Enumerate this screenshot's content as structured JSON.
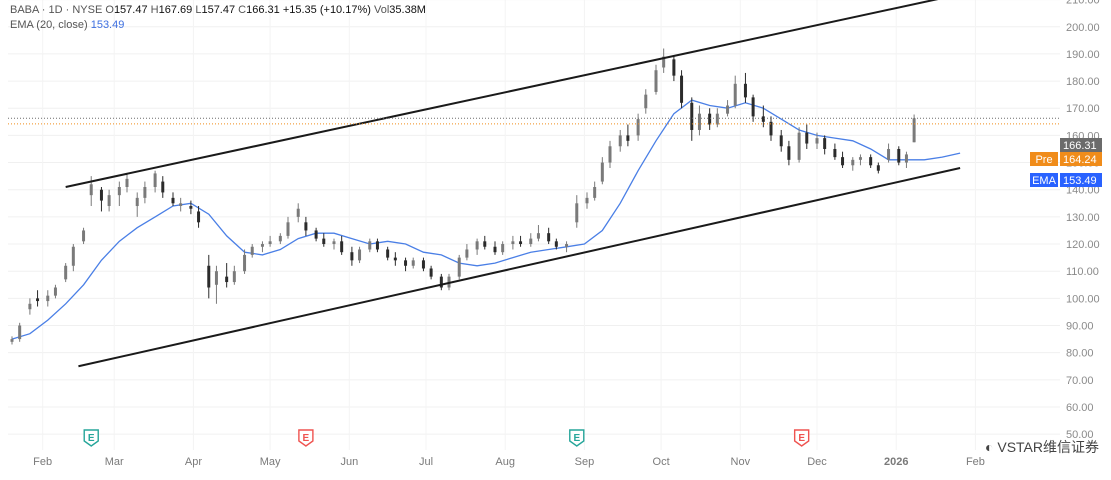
{
  "legend": {
    "symbol_line": "BABA · 1D · NYSE",
    "o_label": "O",
    "o_value": "157.47",
    "h_label": "H",
    "h_value": "167.69",
    "l_label": "L",
    "l_value": "157.47",
    "c_label": "C",
    "c_value": "166.31",
    "change": "+15.35 (+10.17%)",
    "vol_label": "Vol",
    "vol_value": "35.38M",
    "ema_label": "EMA (20, close)",
    "ema_value": "153.49"
  },
  "price_tags": {
    "last": {
      "value": "166.31",
      "color": "#6b6b6b"
    },
    "pre": {
      "label": "Pre",
      "value": "164.24",
      "color": "#f08c1a"
    },
    "ema": {
      "label": "EMA",
      "value": "153.49",
      "color": "#2962ff"
    }
  },
  "earnings_marker": "E",
  "watermark": "VSTAR维信证券",
  "chart_data": {
    "type": "candlestick",
    "y_ticks": [
      "220.00",
      "210.00",
      "200.00",
      "190.00",
      "180.00",
      "170.00",
      "160.00",
      "150.00",
      "140.00",
      "130.00",
      "120.00",
      "110.00",
      "100.00",
      "90.00",
      "80.00",
      "70.00",
      "60.00",
      "50.00"
    ],
    "ylim": [
      49,
      224
    ],
    "x_ticks": [
      "Feb",
      "Mar",
      "Apr",
      "May",
      "Jun",
      "Jul",
      "Aug",
      "Sep",
      "Oct",
      "Nov",
      "Dec",
      "2026",
      "Feb"
    ],
    "x_tick_dates": [
      "2025-02-01",
      "2025-03-01",
      "2025-04-01",
      "2025-05-01",
      "2025-06-01",
      "2025-07-01",
      "2025-08-01",
      "2025-09-01",
      "2025-10-01",
      "2025-11-01",
      "2025-12-01",
      "2026-01-01",
      "2026-02-01"
    ],
    "xlim": [
      "2025-01-20",
      "2026-02-20"
    ],
    "earnings_dates": [
      "2025-02-20",
      "2025-05-15",
      "2025-08-29",
      "2025-11-25"
    ],
    "colors": {
      "up": "#7a7a7a",
      "down": "#2b2b2b",
      "ema": "#4a7fe6",
      "trendline": "#1a1a1a"
    },
    "channel": {
      "upper": [
        [
          "2025-02-10",
          141
        ],
        [
          "2026-02-10",
          215
        ]
      ],
      "lower": [
        [
          "2025-02-15",
          75
        ],
        [
          "2026-01-26",
          148
        ]
      ]
    },
    "ema_series": [
      [
        "2025-01-20",
        85
      ],
      [
        "2025-01-27",
        87
      ],
      [
        "2025-02-03",
        92
      ],
      [
        "2025-02-10",
        98
      ],
      [
        "2025-02-17",
        105
      ],
      [
        "2025-02-24",
        114
      ],
      [
        "2025-03-03",
        121
      ],
      [
        "2025-03-10",
        126
      ],
      [
        "2025-03-17",
        130
      ],
      [
        "2025-03-24",
        134
      ],
      [
        "2025-03-31",
        135
      ],
      [
        "2025-04-07",
        131
      ],
      [
        "2025-04-14",
        123
      ],
      [
        "2025-04-21",
        117
      ],
      [
        "2025-04-28",
        116
      ],
      [
        "2025-05-05",
        118
      ],
      [
        "2025-05-12",
        122
      ],
      [
        "2025-05-19",
        124
      ],
      [
        "2025-05-26",
        124
      ],
      [
        "2025-06-02",
        122
      ],
      [
        "2025-06-09",
        120
      ],
      [
        "2025-06-16",
        121
      ],
      [
        "2025-06-23",
        120
      ],
      [
        "2025-06-30",
        117
      ],
      [
        "2025-07-07",
        116
      ],
      [
        "2025-07-14",
        113
      ],
      [
        "2025-07-21",
        112
      ],
      [
        "2025-07-28",
        113
      ],
      [
        "2025-08-04",
        115
      ],
      [
        "2025-08-11",
        117
      ],
      [
        "2025-08-18",
        118
      ],
      [
        "2025-08-25",
        119
      ],
      [
        "2025-09-01",
        120
      ],
      [
        "2025-09-08",
        125
      ],
      [
        "2025-09-15",
        135
      ],
      [
        "2025-09-22",
        147
      ],
      [
        "2025-09-29",
        158
      ],
      [
        "2025-10-06",
        168
      ],
      [
        "2025-10-13",
        173
      ],
      [
        "2025-10-20",
        171
      ],
      [
        "2025-10-27",
        170
      ],
      [
        "2025-11-03",
        172
      ],
      [
        "2025-11-10",
        170
      ],
      [
        "2025-11-17",
        166
      ],
      [
        "2025-11-24",
        162
      ],
      [
        "2025-12-01",
        160
      ],
      [
        "2025-12-08",
        159
      ],
      [
        "2025-12-15",
        158
      ],
      [
        "2025-12-22",
        155
      ],
      [
        "2025-12-29",
        151
      ],
      [
        "2026-01-05",
        151
      ],
      [
        "2026-01-12",
        151
      ],
      [
        "2026-01-19",
        152
      ],
      [
        "2026-01-26",
        153.49
      ]
    ],
    "candles": [
      [
        "2025-01-20",
        84,
        86,
        83,
        85
      ],
      [
        "2025-01-23",
        85,
        91,
        84,
        90
      ],
      [
        "2025-01-27",
        96,
        100,
        94,
        98
      ],
      [
        "2025-01-30",
        100,
        103,
        97,
        99
      ],
      [
        "2025-02-03",
        99,
        103,
        97,
        101
      ],
      [
        "2025-02-06",
        101,
        105,
        100,
        104
      ],
      [
        "2025-02-10",
        107,
        113,
        106,
        112
      ],
      [
        "2025-02-13",
        112,
        120,
        110,
        119
      ],
      [
        "2025-02-17",
        121,
        126,
        120,
        125
      ],
      [
        "2025-02-20",
        138,
        145,
        134,
        142
      ],
      [
        "2025-02-24",
        140,
        141,
        132,
        136
      ],
      [
        "2025-02-27",
        134,
        140,
        132,
        138
      ],
      [
        "2025-03-03",
        138,
        143,
        134,
        141
      ],
      [
        "2025-03-06",
        141,
        146,
        139,
        144
      ],
      [
        "2025-03-10",
        134,
        139,
        130,
        137
      ],
      [
        "2025-03-13",
        137,
        143,
        135,
        141
      ],
      [
        "2025-03-17",
        141,
        147,
        139,
        146
      ],
      [
        "2025-03-20",
        143,
        145,
        137,
        139
      ],
      [
        "2025-03-24",
        137,
        139,
        134,
        135
      ],
      [
        "2025-03-27",
        134,
        137,
        132,
        135
      ],
      [
        "2025-03-31",
        134,
        136,
        131,
        133
      ],
      [
        "2025-04-03",
        132,
        134,
        126,
        128
      ],
      [
        "2025-04-07",
        112,
        116,
        100,
        104
      ],
      [
        "2025-04-10",
        105,
        112,
        98,
        110
      ],
      [
        "2025-04-14",
        108,
        113,
        104,
        106
      ],
      [
        "2025-04-17",
        106,
        112,
        105,
        110
      ],
      [
        "2025-04-21",
        110,
        118,
        109,
        116
      ],
      [
        "2025-04-24",
        116,
        120,
        115,
        119
      ],
      [
        "2025-04-28",
        119,
        121,
        117,
        120
      ],
      [
        "2025-05-01",
        120,
        123,
        119,
        121
      ],
      [
        "2025-05-05",
        121,
        124,
        120,
        123
      ],
      [
        "2025-05-08",
        123,
        130,
        122,
        128
      ],
      [
        "2025-05-12",
        130,
        135,
        128,
        133
      ],
      [
        "2025-05-15",
        128,
        130,
        123,
        125
      ],
      [
        "2025-05-19",
        125,
        126,
        121,
        122
      ],
      [
        "2025-05-22",
        122,
        124,
        119,
        120
      ],
      [
        "2025-05-26",
        120,
        122,
        118,
        121
      ],
      [
        "2025-05-29",
        121,
        123,
        116,
        117
      ],
      [
        "2025-06-02",
        117,
        119,
        112,
        114
      ],
      [
        "2025-06-05",
        114,
        119,
        113,
        118
      ],
      [
        "2025-06-09",
        118,
        122,
        117,
        121
      ],
      [
        "2025-06-12",
        121,
        122,
        117,
        118
      ],
      [
        "2025-06-16",
        118,
        119,
        114,
        115
      ],
      [
        "2025-06-19",
        115,
        117,
        112,
        114
      ],
      [
        "2025-06-23",
        114,
        115,
        110,
        112
      ],
      [
        "2025-06-26",
        112,
        115,
        111,
        114
      ],
      [
        "2025-06-30",
        114,
        115,
        110,
        111
      ],
      [
        "2025-07-03",
        111,
        112,
        107,
        108
      ],
      [
        "2025-07-07",
        108,
        109,
        103,
        104
      ],
      [
        "2025-07-10",
        104,
        109,
        103,
        108
      ],
      [
        "2025-07-14",
        108,
        116,
        107,
        115
      ],
      [
        "2025-07-17",
        115,
        120,
        114,
        118
      ],
      [
        "2025-07-21",
        118,
        122,
        116,
        121
      ],
      [
        "2025-07-24",
        121,
        123,
        118,
        119
      ],
      [
        "2025-07-28",
        119,
        121,
        116,
        117
      ],
      [
        "2025-07-31",
        117,
        121,
        116,
        120
      ],
      [
        "2025-08-04",
        120,
        123,
        118,
        121
      ],
      [
        "2025-08-07",
        121,
        123,
        119,
        120
      ],
      [
        "2025-08-11",
        120,
        124,
        119,
        122
      ],
      [
        "2025-08-14",
        122,
        127,
        121,
        124
      ],
      [
        "2025-08-18",
        124,
        126,
        120,
        121
      ],
      [
        "2025-08-21",
        121,
        122,
        118,
        119
      ],
      [
        "2025-08-25",
        119,
        121,
        117,
        120
      ],
      [
        "2025-08-29",
        128,
        138,
        126,
        135
      ],
      [
        "2025-09-02",
        135,
        139,
        133,
        137
      ],
      [
        "2025-09-05",
        137,
        143,
        136,
        141
      ],
      [
        "2025-09-08",
        143,
        152,
        142,
        150
      ],
      [
        "2025-09-11",
        150,
        158,
        148,
        156
      ],
      [
        "2025-09-15",
        156,
        162,
        154,
        160
      ],
      [
        "2025-09-18",
        160,
        164,
        156,
        158
      ],
      [
        "2025-09-22",
        160,
        168,
        158,
        166
      ],
      [
        "2025-09-25",
        170,
        177,
        168,
        175
      ],
      [
        "2025-09-29",
        176,
        186,
        175,
        184
      ],
      [
        "2025-10-02",
        185,
        192,
        183,
        189
      ],
      [
        "2025-10-06",
        188,
        189,
        180,
        182
      ],
      [
        "2025-10-09",
        182,
        184,
        170,
        172
      ],
      [
        "2025-10-13",
        172,
        174,
        158,
        162
      ],
      [
        "2025-10-16",
        162,
        171,
        160,
        168
      ],
      [
        "2025-10-20",
        168,
        170,
        162,
        164
      ],
      [
        "2025-10-23",
        164,
        170,
        163,
        168
      ],
      [
        "2025-10-27",
        168,
        173,
        167,
        171
      ],
      [
        "2025-10-30",
        171,
        182,
        170,
        179
      ],
      [
        "2025-11-03",
        179,
        183,
        172,
        174
      ],
      [
        "2025-11-06",
        174,
        175,
        165,
        167
      ],
      [
        "2025-11-10",
        167,
        171,
        163,
        165
      ],
      [
        "2025-11-13",
        165,
        167,
        158,
        160
      ],
      [
        "2025-11-17",
        160,
        162,
        154,
        156
      ],
      [
        "2025-11-20",
        156,
        158,
        149,
        151
      ],
      [
        "2025-11-24",
        151,
        163,
        150,
        161
      ],
      [
        "2025-11-27",
        161,
        164,
        155,
        157
      ],
      [
        "2025-12-01",
        157,
        161,
        155,
        159
      ],
      [
        "2025-12-04",
        159,
        160,
        153,
        155
      ],
      [
        "2025-12-08",
        155,
        157,
        151,
        152
      ],
      [
        "2025-12-11",
        152,
        154,
        148,
        149
      ],
      [
        "2025-12-15",
        149,
        152,
        147,
        151
      ],
      [
        "2025-12-18",
        151,
        153,
        149,
        152
      ],
      [
        "2025-12-22",
        152,
        153,
        148,
        149
      ],
      [
        "2025-12-25",
        149,
        150,
        146,
        147
      ],
      [
        "2025-12-29",
        151,
        157,
        150,
        155
      ],
      [
        "2026-01-02",
        155,
        156,
        149,
        150
      ],
      [
        "2026-01-05",
        150,
        154,
        148,
        153
      ],
      [
        "2026-01-08",
        157.47,
        167.69,
        157.47,
        166.31
      ]
    ]
  }
}
